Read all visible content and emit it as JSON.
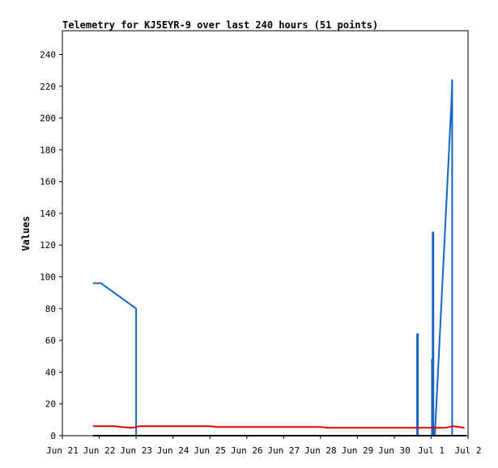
{
  "chart_data": {
    "type": "line",
    "title": "Telemetry for KJ5EYR-9 over last 240 hours (51 points)",
    "xlabel": "",
    "ylabel": "Values",
    "x_ticks": [
      "Jun 21",
      "Jun 22",
      "Jun 23",
      "Jun 24",
      "Jun 25",
      "Jun 26",
      "Jun 27",
      "Jun 28",
      "Jun 29",
      "Jun 30",
      "Jul 1",
      "Jul 2"
    ],
    "x_tick_days": [
      0,
      1,
      2,
      3,
      4,
      5,
      6,
      7,
      8,
      9,
      10,
      11
    ],
    "xlim_days": [
      0,
      11
    ],
    "ylim": [
      0,
      255
    ],
    "y_ticks": [
      0,
      20,
      40,
      60,
      80,
      100,
      120,
      140,
      160,
      180,
      200,
      220,
      240
    ],
    "grid": false,
    "series": [
      {
        "color": "#1565c0",
        "points_days": [
          [
            0.83,
            96
          ],
          [
            1.05,
            96
          ],
          [
            2.0,
            80
          ],
          [
            2.0,
            0
          ],
          [
            2.02,
            0
          ],
          [
            9.62,
            0
          ],
          [
            9.62,
            64
          ],
          [
            9.64,
            64
          ],
          [
            9.64,
            0
          ],
          [
            10.02,
            0
          ],
          [
            10.02,
            48
          ],
          [
            10.04,
            48
          ],
          [
            10.04,
            128
          ],
          [
            10.06,
            128
          ],
          [
            10.06,
            0
          ],
          [
            10.1,
            0
          ],
          [
            10.55,
            210
          ],
          [
            10.57,
            224
          ],
          [
            10.57,
            0
          ],
          [
            10.6,
            0
          ]
        ]
      },
      {
        "color": "#e00000",
        "points_days": [
          [
            0.83,
            6
          ],
          [
            1.4,
            6
          ],
          [
            1.6,
            5.5
          ],
          [
            1.9,
            5
          ],
          [
            2.1,
            6
          ],
          [
            4.0,
            6
          ],
          [
            4.2,
            5.5
          ],
          [
            7.0,
            5.5
          ],
          [
            7.2,
            5
          ],
          [
            10.4,
            5
          ],
          [
            10.6,
            6
          ],
          [
            10.9,
            5
          ]
        ]
      },
      {
        "color": "#000000",
        "points_days": [
          [
            0.83,
            0
          ],
          [
            10.95,
            0
          ]
        ]
      }
    ]
  }
}
